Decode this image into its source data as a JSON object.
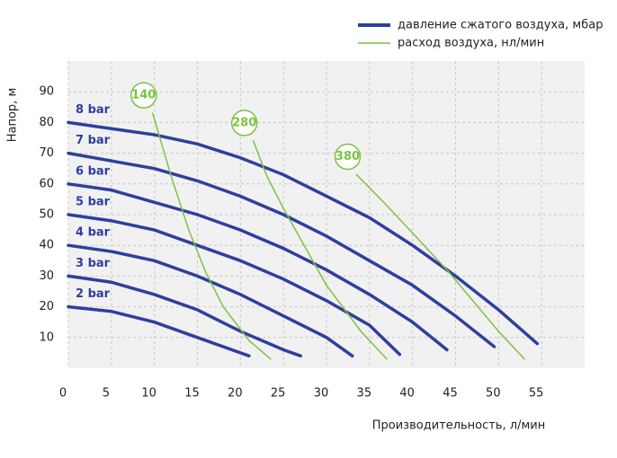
{
  "chart_data": {
    "type": "line",
    "x_label": "Производительность, л/мин",
    "y_label": "Напор, м",
    "xlim": [
      0,
      60
    ],
    "ylim": [
      0,
      100
    ],
    "xticks": [
      0,
      5,
      10,
      15,
      20,
      25,
      30,
      35,
      40,
      45,
      50,
      55
    ],
    "yticks": [
      10,
      20,
      30,
      40,
      50,
      60,
      70,
      80,
      90
    ],
    "grid": true,
    "legend": [
      {
        "label": "давление сжатого воздуха, мбар",
        "color": "#2e3f9e"
      },
      {
        "label": "расход воздуха, нл/мин",
        "color": "#7cc242"
      }
    ],
    "series": [
      {
        "name": "8 bar",
        "color": "#2e3f9e",
        "group": 0,
        "x": [
          0,
          10,
          15,
          20,
          25,
          30,
          35,
          40,
          45,
          50,
          54.5
        ],
        "values": [
          80,
          76,
          73,
          68.5,
          63,
          56,
          49,
          40,
          30,
          19,
          8
        ]
      },
      {
        "name": "7 bar",
        "color": "#2e3f9e",
        "group": 0,
        "x": [
          0,
          10,
          15,
          20,
          25,
          30,
          35,
          40,
          45,
          49.5
        ],
        "values": [
          70,
          65,
          61,
          56,
          50,
          43,
          35,
          27,
          17,
          7
        ]
      },
      {
        "name": "6 bar",
        "color": "#2e3f9e",
        "group": 0,
        "x": [
          0,
          5,
          10,
          15,
          20,
          25,
          30,
          35,
          40,
          44
        ],
        "values": [
          60,
          58,
          54,
          50,
          45,
          39,
          32,
          24,
          15,
          6
        ]
      },
      {
        "name": "5 bar",
        "color": "#2e3f9e",
        "group": 0,
        "x": [
          0,
          5,
          10,
          15,
          20,
          25,
          30,
          35,
          38.5
        ],
        "values": [
          50,
          48,
          45,
          40,
          35,
          29,
          22,
          14,
          4.5
        ]
      },
      {
        "name": "4 bar",
        "color": "#2e3f9e",
        "group": 0,
        "x": [
          0,
          5,
          10,
          15,
          20,
          25,
          30,
          33
        ],
        "values": [
          40,
          38,
          35,
          30,
          24,
          17,
          10,
          4
        ]
      },
      {
        "name": "3 bar",
        "color": "#2e3f9e",
        "group": 0,
        "x": [
          0,
          5,
          10,
          15,
          20,
          25,
          27
        ],
        "values": [
          30,
          28,
          24,
          19,
          12,
          6,
          4
        ]
      },
      {
        "name": "2 bar",
        "color": "#2e3f9e",
        "group": 0,
        "x": [
          0,
          5,
          10,
          15,
          19,
          21
        ],
        "values": [
          20,
          18.5,
          15,
          10,
          6,
          4
        ]
      },
      {
        "name": "140",
        "color": "#7cc242",
        "group": 1,
        "x": [
          9.8,
          12,
          14,
          16,
          18,
          21,
          23.5
        ],
        "values": [
          83,
          62,
          45,
          31,
          20,
          9,
          3
        ]
      },
      {
        "name": "280",
        "color": "#7cc242",
        "group": 1,
        "x": [
          21.5,
          23,
          25,
          28,
          30,
          34,
          37
        ],
        "values": [
          74,
          63,
          52,
          37,
          27,
          12,
          3
        ]
      },
      {
        "name": "380",
        "color": "#7cc242",
        "group": 1,
        "x": [
          33.5,
          37,
          40,
          44,
          47,
          50,
          53
        ],
        "values": [
          63,
          53,
          44,
          32,
          22,
          12,
          3
        ]
      }
    ]
  }
}
